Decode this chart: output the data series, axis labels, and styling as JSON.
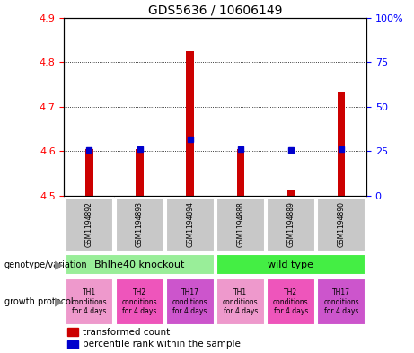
{
  "title": "GDS5636 / 10606149",
  "samples": [
    "GSM1194892",
    "GSM1194893",
    "GSM1194894",
    "GSM1194888",
    "GSM1194889",
    "GSM1194890"
  ],
  "red_values": [
    4.605,
    4.605,
    4.825,
    4.605,
    4.515,
    4.735
  ],
  "blue_values": [
    4.603,
    4.606,
    4.628,
    4.606,
    4.604,
    4.606
  ],
  "ylim": [
    4.5,
    4.9
  ],
  "y_ticks": [
    4.5,
    4.6,
    4.7,
    4.8,
    4.9
  ],
  "y2_labels": [
    "0",
    "25",
    "50",
    "75",
    "100%"
  ],
  "y2_tick_positions": [
    4.5,
    4.6,
    4.7,
    4.8,
    4.9
  ],
  "genotype_groups": [
    {
      "label": "Bhlhe40 knockout",
      "color": "#99EE99",
      "start": 0,
      "end": 3
    },
    {
      "label": "wild type",
      "color": "#44EE44",
      "start": 3,
      "end": 6
    }
  ],
  "growth_protocols": [
    {
      "label": "TH1\nconditions\nfor 4 days",
      "color": "#EE99CC"
    },
    {
      "label": "TH2\nconditions\nfor 4 days",
      "color": "#EE55BB"
    },
    {
      "label": "TH17\nconditions\nfor 4 days",
      "color": "#CC55CC"
    },
    {
      "label": "TH1\nconditions\nfor 4 days",
      "color": "#EE99CC"
    },
    {
      "label": "TH2\nconditions\nfor 4 days",
      "color": "#EE55BB"
    },
    {
      "label": "TH17\nconditions\nfor 4 days",
      "color": "#CC55CC"
    }
  ],
  "bar_bottom": 4.5,
  "red_color": "#CC0000",
  "blue_color": "#0000CC",
  "sample_bg": "#C8C8C8",
  "bar_width": 0.15
}
